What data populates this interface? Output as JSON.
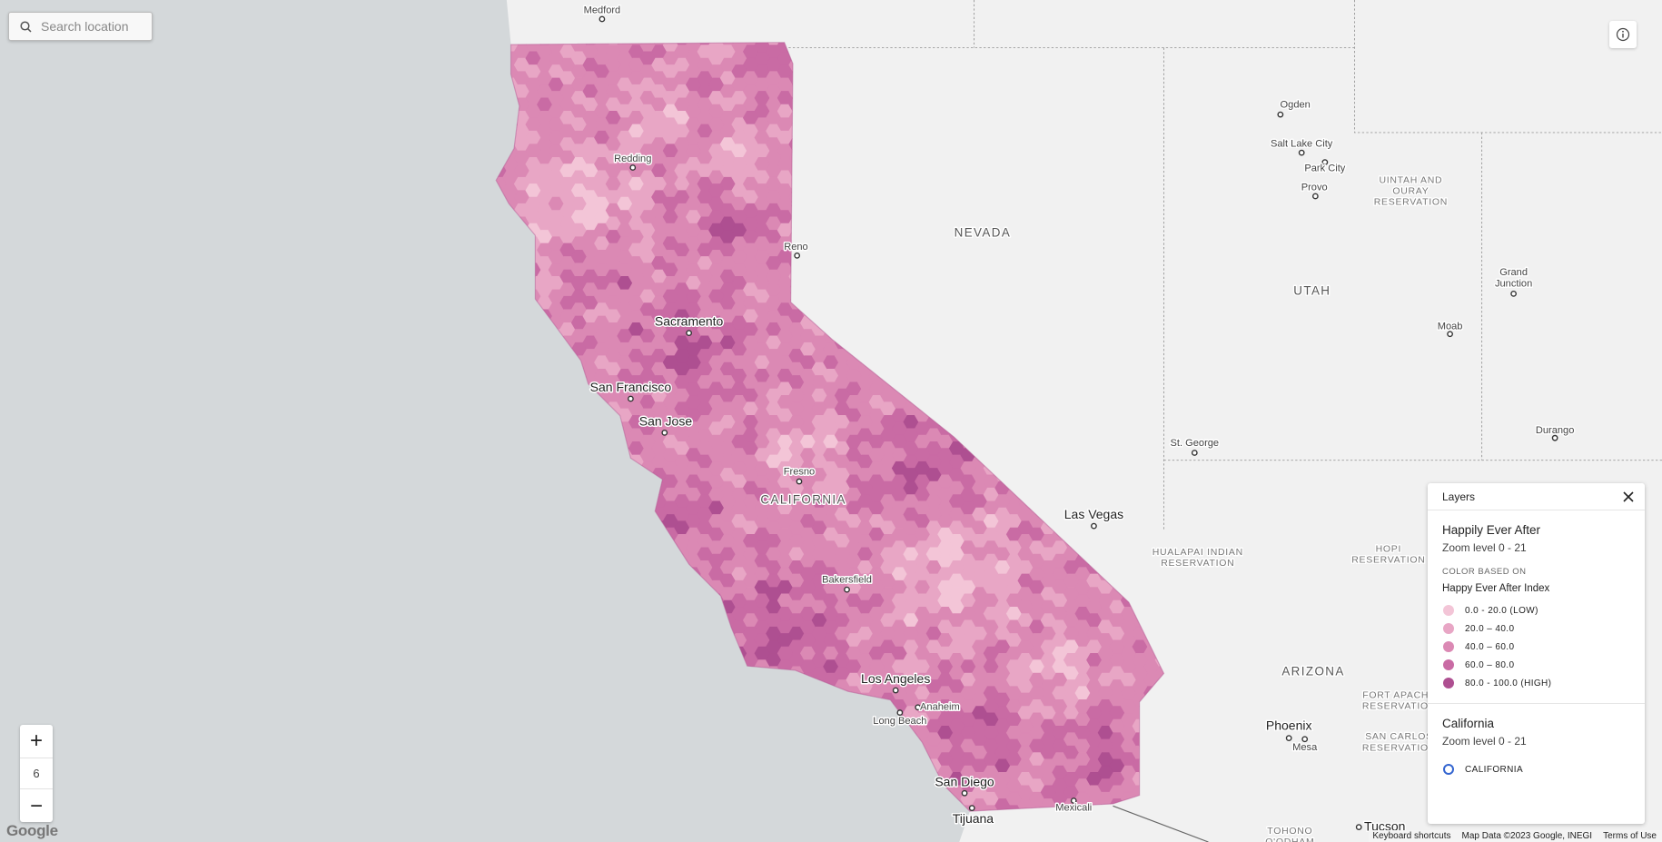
{
  "search": {
    "placeholder": "Search location"
  },
  "zoom": {
    "level": 6
  },
  "map_labels": [
    "Medford",
    "Redding",
    "Reno",
    "NEVADA",
    "Ogden",
    "Salt Lake City",
    "Park City",
    "Provo",
    [
      "UINTAH AND",
      "OURAY",
      "RESERVATION"
    ],
    [
      "Grand",
      "Junction"
    ],
    "UTAH",
    "Moab",
    "Durango",
    "St. George",
    "Sacramento",
    "San Francisco",
    "San Jose",
    "Fresno",
    "CALIFORNIA",
    "Las Vegas",
    [
      "HUALAPAI INDIAN",
      "RESERVATION"
    ],
    [
      "HOPI",
      "RESERVATION"
    ],
    "Bakersfield",
    "Los Angeles",
    "Anaheim",
    "Long Beach",
    "San Diego",
    "Tijuana",
    "Mexicali",
    "ARIZONA",
    "Phoenix",
    "Mesa",
    "Tucson",
    [
      "FORT APACHE",
      "RESERVATION"
    ],
    [
      "SAN CARLOS",
      "RESERVATION"
    ],
    [
      "TOHONO",
      "O'ODHAM"
    ]
  ],
  "legend": {
    "title": "Layers",
    "layers": [
      {
        "name": "Happily Ever After",
        "zoom": "Zoom level 0 - 21",
        "color_based_on": "COLOR BASED ON",
        "field": "Happy Ever After Index",
        "items": [
          {
            "label": "0.0 - 20.0 (LOW)",
            "color": "#f3c5d7"
          },
          {
            "label": "20.0 – 40.0",
            "color": "#e8a6c5"
          },
          {
            "label": "40.0 – 60.0",
            "color": "#db89b4"
          },
          {
            "label": "60.0 – 80.0",
            "color": "#c96ba4"
          },
          {
            "label": "80.0 - 100.0 (HIGH)",
            "color": "#ae4f91"
          }
        ]
      },
      {
        "name": "California",
        "zoom": "Zoom level 0 - 21",
        "items": [
          {
            "label": "CALIFORNIA",
            "color": "#3465d0",
            "outline": true
          }
        ]
      }
    ]
  },
  "footer": {
    "logo": "Google",
    "shortcuts": "Keyboard shortcuts",
    "attribution": "Map Data ©2023 Google, INEGI",
    "terms": "Terms of Use"
  }
}
